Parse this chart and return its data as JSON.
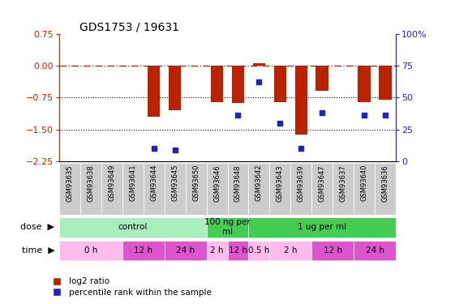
{
  "title": "GDS1753 / 19631",
  "samples": [
    "GSM93635",
    "GSM93638",
    "GSM93649",
    "GSM93641",
    "GSM93644",
    "GSM93645",
    "GSM93650",
    "GSM93646",
    "GSM93648",
    "GSM93642",
    "GSM93643",
    "GSM93639",
    "GSM93647",
    "GSM93637",
    "GSM93640",
    "GSM93636"
  ],
  "log2_ratio": [
    0.0,
    0.0,
    0.0,
    0.0,
    -1.2,
    -1.05,
    0.0,
    -0.85,
    -0.87,
    0.05,
    -0.85,
    -1.62,
    -0.6,
    0.0,
    -0.85,
    -0.8
  ],
  "percentile_rank": [
    null,
    null,
    null,
    null,
    10,
    9,
    null,
    null,
    36,
    62,
    30,
    10,
    38,
    null,
    36,
    36
  ],
  "ylim_left": [
    -2.25,
    0.75
  ],
  "ylim_right": [
    0,
    100
  ],
  "yticks_left": [
    0.75,
    0.0,
    -0.75,
    -1.5,
    -2.25
  ],
  "yticks_right": [
    100,
    75,
    50,
    25,
    0
  ],
  "bar_color": "#bb2200",
  "dot_color": "#2222bb",
  "dashed_line_color": "#cc2200",
  "dotted_line_color": "#000000",
  "dose_groups": [
    {
      "label": "control",
      "start": 0,
      "end": 7,
      "color": "#aaeebb"
    },
    {
      "label": "100 ng per\nml",
      "start": 7,
      "end": 9,
      "color": "#44cc55"
    },
    {
      "label": "1 ug per ml",
      "start": 9,
      "end": 16,
      "color": "#44cc55"
    }
  ],
  "time_groups": [
    {
      "label": "0 h",
      "start": 0,
      "end": 3,
      "color": "#ffbbee"
    },
    {
      "label": "12 h",
      "start": 3,
      "end": 5,
      "color": "#dd55cc"
    },
    {
      "label": "24 h",
      "start": 5,
      "end": 7,
      "color": "#dd55cc"
    },
    {
      "label": "2 h",
      "start": 7,
      "end": 8,
      "color": "#ffbbee"
    },
    {
      "label": "12 h",
      "start": 8,
      "end": 9,
      "color": "#dd55cc"
    },
    {
      "label": "0.5 h",
      "start": 9,
      "end": 10,
      "color": "#ffbbee"
    },
    {
      "label": "2 h",
      "start": 10,
      "end": 12,
      "color": "#ffbbee"
    },
    {
      "label": "12 h",
      "start": 12,
      "end": 14,
      "color": "#dd55cc"
    },
    {
      "label": "24 h",
      "start": 14,
      "end": 16,
      "color": "#dd55cc"
    }
  ],
  "left_axis_color": "#cc2200",
  "right_axis_color": "#2222cc",
  "sample_bg_color": "#cccccc",
  "plot_bg": "#ffffff"
}
